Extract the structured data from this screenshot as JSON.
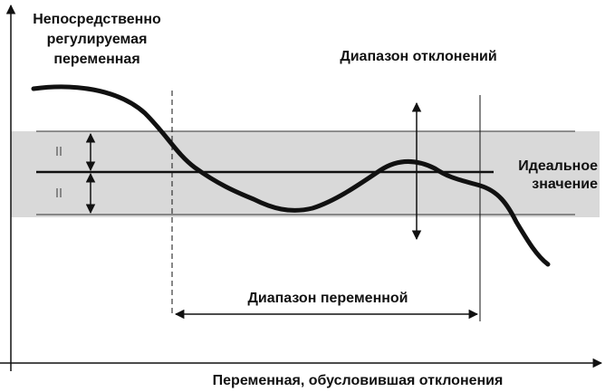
{
  "y_axis_label": {
    "lines": [
      "Непосредственно",
      "регулируемая",
      "переменная"
    ]
  },
  "deviation_range": "Диапазон отклонений",
  "ideal_value": {
    "lines": [
      "Идеальное",
      "значение"
    ]
  },
  "variable_range": "Диапазон переменной",
  "x_axis_label": "Переменная, обусловившая отклонения"
}
